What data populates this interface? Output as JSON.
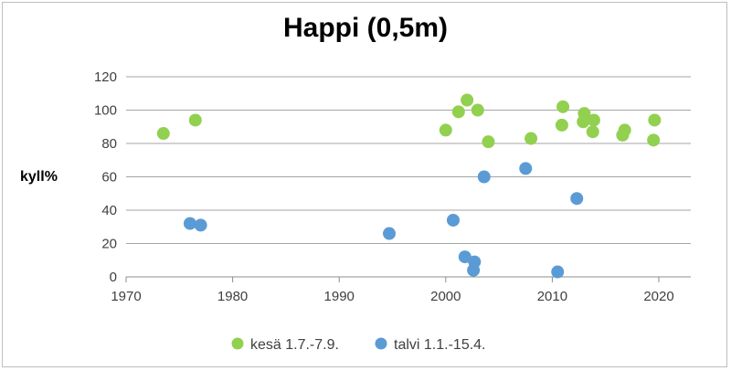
{
  "chart_data": {
    "type": "scatter",
    "title": "Happi (0,5m)",
    "ylabel": "kyll%",
    "xlabel": "",
    "xlim": [
      1970,
      2023
    ],
    "ylim": [
      0,
      120
    ],
    "xticks": [
      1970,
      1980,
      1990,
      2000,
      2010,
      2020
    ],
    "yticks": [
      0,
      20,
      40,
      60,
      80,
      100,
      120
    ],
    "grid": "horizontal",
    "legend_position": "bottom",
    "series": [
      {
        "name": "kesä 1.7.-7.9.",
        "color": "#92d050",
        "points": [
          [
            1973.5,
            86
          ],
          [
            1976.5,
            94
          ],
          [
            2000.0,
            88
          ],
          [
            2001.2,
            99
          ],
          [
            2002.0,
            106
          ],
          [
            2003.0,
            100
          ],
          [
            2004.0,
            81
          ],
          [
            2008.0,
            83
          ],
          [
            2010.9,
            91
          ],
          [
            2011.0,
            102
          ],
          [
            2012.9,
            93
          ],
          [
            2013.0,
            98
          ],
          [
            2013.8,
            87
          ],
          [
            2013.9,
            94
          ],
          [
            2016.6,
            85
          ],
          [
            2016.8,
            88
          ],
          [
            2019.5,
            82
          ],
          [
            2019.6,
            94
          ]
        ]
      },
      {
        "name": "talvi 1.1.-15.4.",
        "color": "#5b9bd5",
        "points": [
          [
            1976.0,
            32
          ],
          [
            1977.0,
            31
          ],
          [
            1994.7,
            26
          ],
          [
            2000.7,
            34
          ],
          [
            2001.8,
            12
          ],
          [
            2002.6,
            4
          ],
          [
            2002.7,
            9
          ],
          [
            2003.6,
            60
          ],
          [
            2007.5,
            65
          ],
          [
            2010.5,
            3
          ],
          [
            2012.3,
            47
          ]
        ]
      }
    ]
  }
}
